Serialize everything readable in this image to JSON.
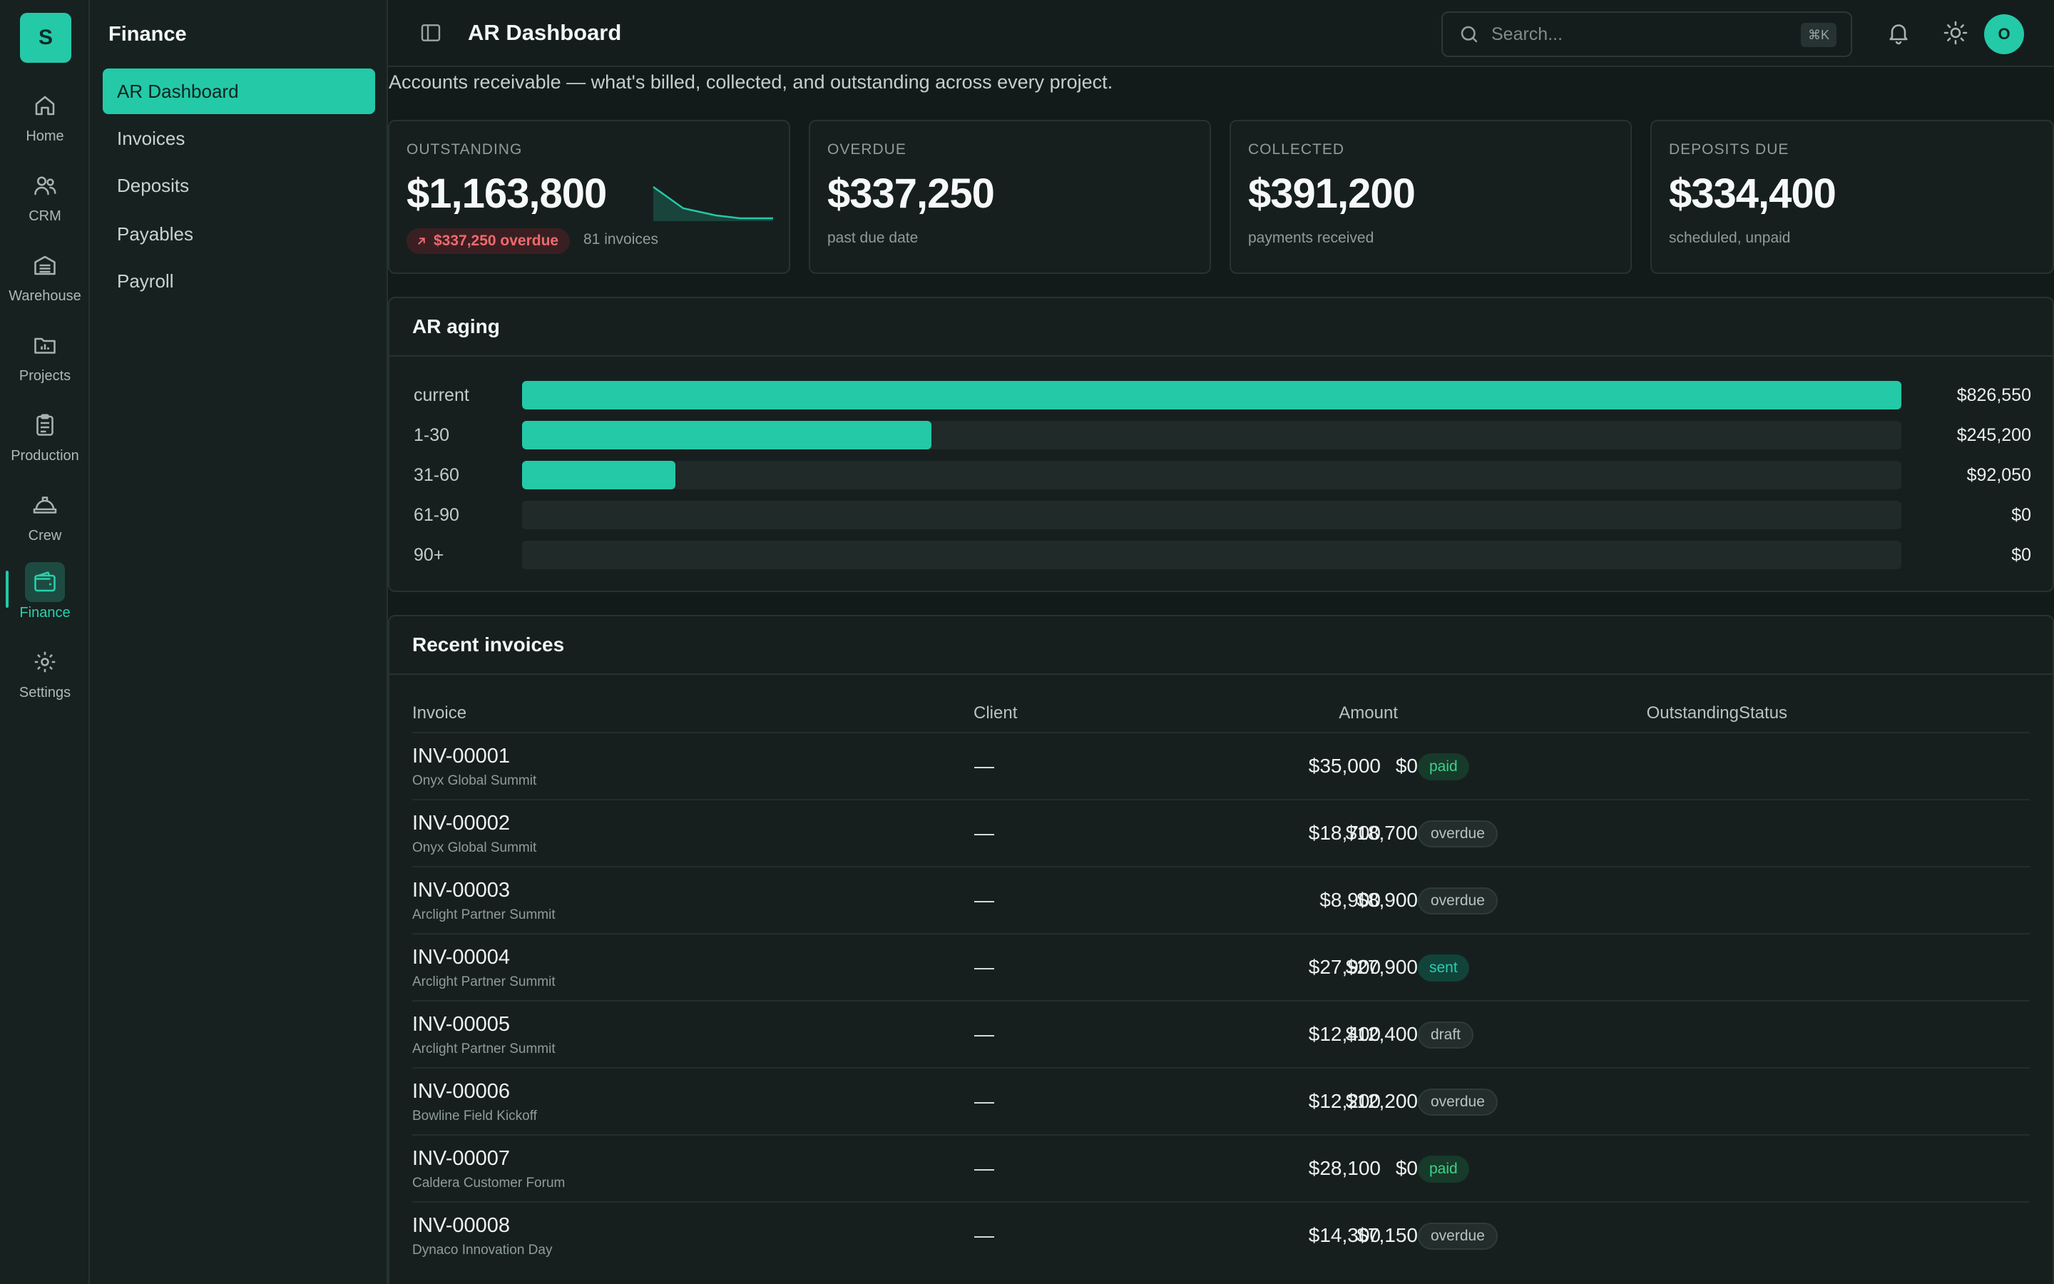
{
  "app": {
    "logo_letter": "S"
  },
  "rail": [
    {
      "label": "Home",
      "icon": "home-icon"
    },
    {
      "label": "CRM",
      "icon": "users-icon"
    },
    {
      "label": "Warehouse",
      "icon": "warehouse-icon"
    },
    {
      "label": "Projects",
      "icon": "folder-icon"
    },
    {
      "label": "Production",
      "icon": "clipboard-icon"
    },
    {
      "label": "Crew",
      "icon": "hardhat-icon"
    },
    {
      "label": "Finance",
      "icon": "wallet-icon",
      "active": true
    },
    {
      "label": "Settings",
      "icon": "gear-icon"
    }
  ],
  "sidebar": {
    "title": "Finance",
    "items": [
      {
        "label": "AR Dashboard",
        "active": true
      },
      {
        "label": "Invoices"
      },
      {
        "label": "Deposits"
      },
      {
        "label": "Payables"
      },
      {
        "label": "Payroll"
      }
    ]
  },
  "topbar": {
    "title": "AR Dashboard",
    "search_placeholder": "Search...",
    "shortcut": "⌘K",
    "avatar_initial": "O"
  },
  "main": {
    "subtitle": "Accounts receivable — what's billed, collected, and outstanding across every project."
  },
  "kpis": [
    {
      "label": "OUTSTANDING",
      "value": "$1,163,800",
      "badge": "$337,250 overdue",
      "count": "81 invoices"
    },
    {
      "label": "OVERDUE",
      "value": "$337,250",
      "sub": "past due date"
    },
    {
      "label": "COLLECTED",
      "value": "$391,200",
      "sub": "payments received"
    },
    {
      "label": "DEPOSITS DUE",
      "value": "$334,400",
      "sub": "scheduled, unpaid"
    }
  ],
  "aging": {
    "title": "AR aging",
    "rows": [
      {
        "label": "current",
        "amount": "$826,550",
        "value": 826550
      },
      {
        "label": "1-30",
        "amount": "$245,200",
        "value": 245200
      },
      {
        "label": "31-60",
        "amount": "$92,050",
        "value": 92050
      },
      {
        "label": "61-90",
        "amount": "$0",
        "value": 0
      },
      {
        "label": "90+",
        "amount": "$0",
        "value": 0
      }
    ]
  },
  "invoices": {
    "title": "Recent invoices",
    "columns": {
      "invoice": "Invoice",
      "client": "Client",
      "amount": "Amount",
      "outstanding": "Outstanding",
      "status": "Status"
    },
    "rows": [
      {
        "number": "INV-00001",
        "project": "Onyx Global Summit",
        "client": "—",
        "amount": "$35,000",
        "outstanding": "$0",
        "status": "paid"
      },
      {
        "number": "INV-00002",
        "project": "Onyx Global Summit",
        "client": "—",
        "amount": "$18,700",
        "outstanding": "$18,700",
        "status": "overdue"
      },
      {
        "number": "INV-00003",
        "project": "Arclight Partner Summit",
        "client": "—",
        "amount": "$8,900",
        "outstanding": "$8,900",
        "status": "overdue"
      },
      {
        "number": "INV-00004",
        "project": "Arclight Partner Summit",
        "client": "—",
        "amount": "$27,900",
        "outstanding": "$27,900",
        "status": "sent"
      },
      {
        "number": "INV-00005",
        "project": "Arclight Partner Summit",
        "client": "—",
        "amount": "$12,400",
        "outstanding": "$12,400",
        "status": "draft"
      },
      {
        "number": "INV-00006",
        "project": "Bowline Field Kickoff",
        "client": "—",
        "amount": "$12,200",
        "outstanding": "$12,200",
        "status": "overdue"
      },
      {
        "number": "INV-00007",
        "project": "Caldera Customer Forum",
        "client": "—",
        "amount": "$28,100",
        "outstanding": "$0",
        "status": "paid"
      },
      {
        "number": "INV-00008",
        "project": "Dynaco Innovation Day",
        "client": "—",
        "amount": "$14,300",
        "outstanding": "$7,150",
        "status": "overdue"
      }
    ]
  },
  "colors": {
    "accent": "#24c9a8",
    "background": "#121b1a",
    "danger": "#ef6a6e",
    "success": "#3fd18a"
  }
}
